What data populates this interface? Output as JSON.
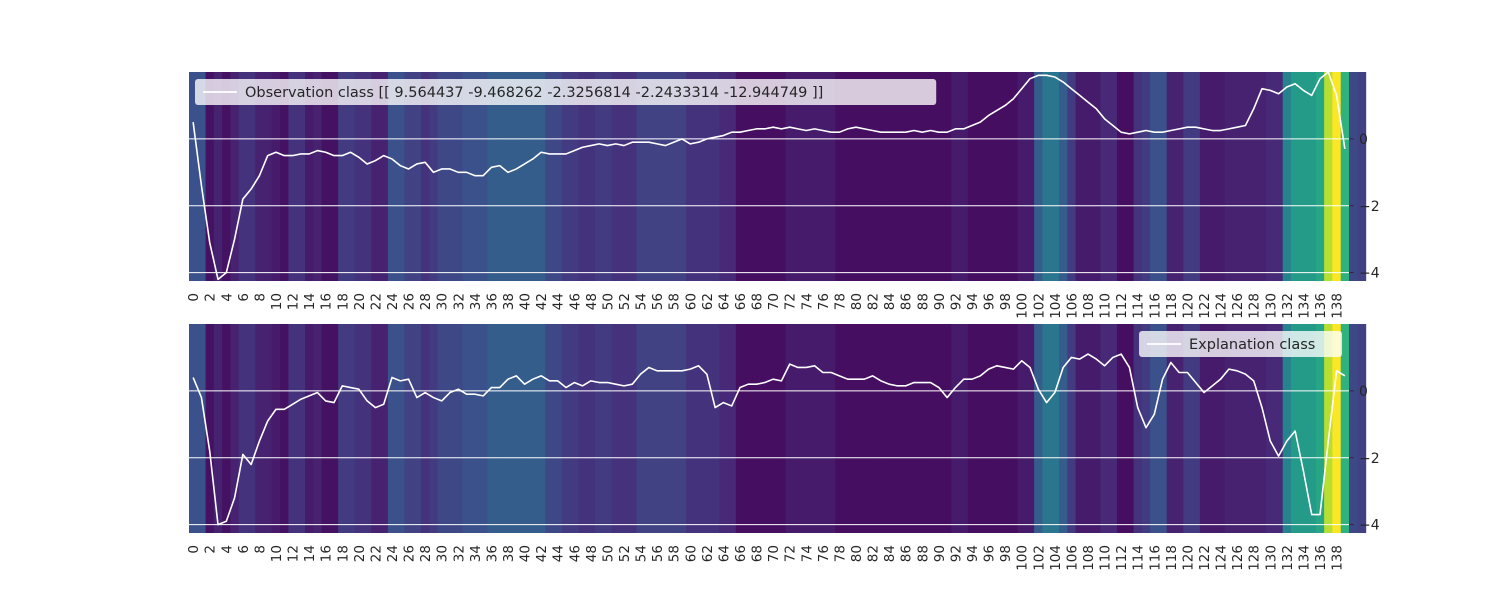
{
  "chart_data": [
    {
      "type": "heatmap",
      "legend_label": "Observation class [[  9.564437   -9.468262   -2.3256814  -2.2433314 -12.944749 ]]",
      "legend_placement": "top-left",
      "x_ticks": [
        "0",
        "2",
        "4",
        "6",
        "8",
        "10",
        "12",
        "14",
        "16",
        "18",
        "20",
        "22",
        "24",
        "26",
        "28",
        "30",
        "32",
        "34",
        "36",
        "38",
        "40",
        "42",
        "44",
        "46",
        "48",
        "50",
        "52",
        "54",
        "56",
        "58",
        "60",
        "62",
        "64",
        "66",
        "68",
        "70",
        "72",
        "74",
        "76",
        "78",
        "80",
        "82",
        "84",
        "86",
        "88",
        "90",
        "92",
        "94",
        "96",
        "98",
        "100",
        "102",
        "104",
        "106",
        "108",
        "110",
        "112",
        "114",
        "116",
        "118",
        "120",
        "122",
        "124",
        "126",
        "128",
        "130",
        "132",
        "134",
        "136",
        "138"
      ],
      "y_ticks": [
        0,
        -2,
        -4
      ],
      "y_tick_labels": [
        "0",
        "−2",
        "−4"
      ],
      "ylim": [
        -4.25,
        2.0
      ],
      "grid": true,
      "colormap": "viridis",
      "heat_intensity": [
        0.25,
        0.25,
        0.05,
        0.1,
        0.05,
        0.1,
        0.15,
        0.15,
        0.1,
        0.1,
        0.08,
        0.05,
        0.15,
        0.15,
        0.08,
        0.1,
        0.05,
        0.05,
        0.18,
        0.18,
        0.15,
        0.15,
        0.1,
        0.1,
        0.25,
        0.25,
        0.2,
        0.2,
        0.15,
        0.18,
        0.22,
        0.22,
        0.22,
        0.25,
        0.25,
        0.25,
        0.3,
        0.3,
        0.3,
        0.3,
        0.3,
        0.3,
        0.3,
        0.22,
        0.22,
        0.18,
        0.18,
        0.15,
        0.15,
        0.18,
        0.18,
        0.15,
        0.15,
        0.15,
        0.2,
        0.2,
        0.2,
        0.2,
        0.2,
        0.2,
        0.15,
        0.15,
        0.15,
        0.15,
        0.12,
        0.12,
        0.04,
        0.04,
        0.04,
        0.04,
        0.04,
        0.04,
        0.08,
        0.08,
        0.08,
        0.08,
        0.08,
        0.08,
        0.04,
        0.04,
        0.04,
        0.04,
        0.04,
        0.04,
        0.04,
        0.04,
        0.04,
        0.04,
        0.04,
        0.04,
        0.04,
        0.04,
        0.08,
        0.08,
        0.04,
        0.04,
        0.04,
        0.04,
        0.04,
        0.04,
        0.08,
        0.08,
        0.3,
        0.4,
        0.4,
        0.3,
        0.18,
        0.08,
        0.08,
        0.08,
        0.12,
        0.12,
        0.04,
        0.04,
        0.15,
        0.18,
        0.25,
        0.25,
        0.1,
        0.1,
        0.18,
        0.18,
        0.08,
        0.08,
        0.08,
        0.1,
        0.1,
        0.1,
        0.1,
        0.1,
        0.12,
        0.12,
        0.45,
        0.55,
        0.55,
        0.55,
        0.6,
        0.9,
        1.0,
        0.65,
        0.22,
        0.2
      ],
      "series": [
        {
          "values": [
            0.5,
            -1.4,
            -3.1,
            -4.2,
            -4.0,
            -3.0,
            -1.8,
            -1.5,
            -1.1,
            -0.5,
            -0.4,
            -0.5,
            -0.5,
            -0.45,
            -0.45,
            -0.35,
            -0.4,
            -0.5,
            -0.5,
            -0.4,
            -0.55,
            -0.75,
            -0.65,
            -0.5,
            -0.6,
            -0.8,
            -0.9,
            -0.75,
            -0.7,
            -1.0,
            -0.9,
            -0.9,
            -1.0,
            -1.0,
            -1.1,
            -1.1,
            -0.85,
            -0.8,
            -1.0,
            -0.9,
            -0.75,
            -0.6,
            -0.4,
            -0.45,
            -0.45,
            -0.45,
            -0.35,
            -0.25,
            -0.2,
            -0.15,
            -0.2,
            -0.15,
            -0.2,
            -0.1,
            -0.1,
            -0.1,
            -0.15,
            -0.2,
            -0.1,
            0.0,
            -0.15,
            -0.1,
            0.0,
            0.05,
            0.1,
            0.2,
            0.2,
            0.25,
            0.3,
            0.3,
            0.35,
            0.3,
            0.35,
            0.3,
            0.25,
            0.3,
            0.25,
            0.2,
            0.2,
            0.3,
            0.35,
            0.3,
            0.25,
            0.2,
            0.2,
            0.2,
            0.2,
            0.25,
            0.2,
            0.25,
            0.2,
            0.2,
            0.3,
            0.3,
            0.4,
            0.5,
            0.7,
            0.85,
            1.0,
            1.2,
            1.5,
            1.8,
            1.9,
            1.9,
            1.85,
            1.7,
            1.5,
            1.3,
            1.1,
            0.9,
            0.6,
            0.4,
            0.2,
            0.15,
            0.2,
            0.25,
            0.2,
            0.2,
            0.25,
            0.3,
            0.35,
            0.35,
            0.3,
            0.25,
            0.25,
            0.3,
            0.35,
            0.4,
            0.9,
            1.5,
            1.45,
            1.35,
            1.55,
            1.65,
            1.45,
            1.3,
            1.8,
            2.0,
            1.3,
            -0.3
          ]
        }
      ]
    },
    {
      "type": "heatmap",
      "legend_label": "Explanation class",
      "legend_placement": "top-right",
      "x_ticks": [
        "0",
        "2",
        "4",
        "6",
        "8",
        "10",
        "12",
        "14",
        "16",
        "18",
        "20",
        "22",
        "24",
        "26",
        "28",
        "30",
        "32",
        "34",
        "36",
        "38",
        "40",
        "42",
        "44",
        "46",
        "48",
        "50",
        "52",
        "54",
        "56",
        "58",
        "60",
        "62",
        "64",
        "66",
        "68",
        "70",
        "72",
        "74",
        "76",
        "78",
        "80",
        "82",
        "84",
        "86",
        "88",
        "90",
        "92",
        "94",
        "96",
        "98",
        "100",
        "102",
        "104",
        "106",
        "108",
        "110",
        "112",
        "114",
        "116",
        "118",
        "120",
        "122",
        "124",
        "126",
        "128",
        "130",
        "132",
        "134",
        "136",
        "138"
      ],
      "y_ticks": [
        0,
        -2,
        -4
      ],
      "y_tick_labels": [
        "0",
        "−2",
        "−4"
      ],
      "ylim": [
        -4.25,
        2.0
      ],
      "grid": true,
      "colormap": "viridis",
      "heat_intensity": "same as panel 1",
      "series": [
        {
          "values": [
            0.4,
            -0.2,
            -1.8,
            -4.0,
            -3.9,
            -3.2,
            -1.9,
            -2.2,
            -1.5,
            -0.9,
            -0.55,
            -0.55,
            -0.4,
            -0.25,
            -0.15,
            -0.05,
            -0.3,
            -0.35,
            0.15,
            0.1,
            0.05,
            -0.3,
            -0.5,
            -0.4,
            0.4,
            0.3,
            0.35,
            -0.2,
            -0.05,
            -0.2,
            -0.3,
            -0.05,
            0.05,
            -0.1,
            -0.1,
            -0.15,
            0.1,
            0.1,
            0.35,
            0.45,
            0.2,
            0.35,
            0.45,
            0.3,
            0.3,
            0.1,
            0.25,
            0.15,
            0.3,
            0.25,
            0.25,
            0.2,
            0.15,
            0.2,
            0.5,
            0.7,
            0.6,
            0.6,
            0.6,
            0.6,
            0.65,
            0.75,
            0.5,
            -0.5,
            -0.35,
            -0.45,
            0.1,
            0.2,
            0.2,
            0.25,
            0.35,
            0.3,
            0.8,
            0.7,
            0.7,
            0.75,
            0.55,
            0.55,
            0.45,
            0.35,
            0.35,
            0.35,
            0.45,
            0.3,
            0.2,
            0.15,
            0.15,
            0.25,
            0.25,
            0.25,
            0.1,
            -0.2,
            0.1,
            0.35,
            0.35,
            0.45,
            0.65,
            0.75,
            0.7,
            0.65,
            0.9,
            0.7,
            0.05,
            -0.35,
            -0.05,
            0.7,
            1.0,
            0.95,
            1.1,
            0.95,
            0.75,
            1.0,
            1.1,
            0.7,
            -0.5,
            -1.1,
            -0.7,
            0.35,
            0.85,
            0.55,
            0.55,
            0.25,
            -0.05,
            0.15,
            0.35,
            0.65,
            0.6,
            0.5,
            0.3,
            -0.5,
            -1.5,
            -1.95,
            -1.5,
            -1.2,
            -2.4,
            -3.7,
            -3.7,
            -1.5,
            0.6,
            0.45
          ]
        }
      ]
    }
  ]
}
